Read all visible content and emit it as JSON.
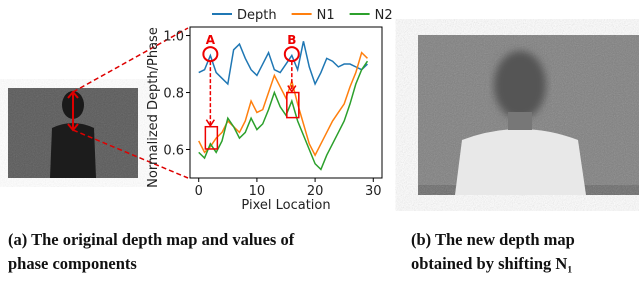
{
  "chart_data": {
    "type": "line",
    "x": [
      0,
      1,
      2,
      3,
      4,
      5,
      6,
      7,
      8,
      9,
      10,
      11,
      12,
      13,
      14,
      15,
      16,
      17,
      18,
      19,
      20,
      21,
      22,
      23,
      24,
      25,
      26,
      27,
      28,
      29
    ],
    "series": [
      {
        "name": "Depth",
        "color": "#1f77b4",
        "values": [
          0.87,
          0.88,
          0.93,
          0.87,
          0.85,
          0.83,
          0.95,
          0.97,
          0.92,
          0.88,
          0.86,
          0.9,
          0.94,
          0.88,
          0.87,
          0.9,
          0.93,
          0.88,
          0.98,
          0.89,
          0.83,
          0.87,
          0.92,
          0.91,
          0.89,
          0.9,
          0.9,
          0.89,
          0.88,
          0.9
        ]
      },
      {
        "name": "N1",
        "color": "#ff7f0e",
        "values": [
          0.63,
          0.59,
          0.61,
          0.64,
          0.66,
          0.7,
          0.68,
          0.66,
          0.7,
          0.77,
          0.73,
          0.74,
          0.8,
          0.86,
          0.82,
          0.78,
          0.84,
          0.76,
          0.69,
          0.62,
          0.58,
          0.62,
          0.66,
          0.7,
          0.73,
          0.76,
          0.82,
          0.87,
          0.94,
          0.92
        ]
      },
      {
        "name": "N2",
        "color": "#2ca02c",
        "values": [
          0.59,
          0.57,
          0.62,
          0.59,
          0.63,
          0.71,
          0.68,
          0.64,
          0.66,
          0.71,
          0.67,
          0.69,
          0.74,
          0.8,
          0.75,
          0.72,
          0.77,
          0.7,
          0.65,
          0.6,
          0.55,
          0.53,
          0.58,
          0.62,
          0.66,
          0.7,
          0.76,
          0.83,
          0.88,
          0.91
        ]
      }
    ],
    "x_label": "Pixel Location",
    "y_label": "Normalized Depth/Phase",
    "xlim": [
      -1.5,
      31.5
    ],
    "ylim": [
      0.5,
      1.03
    ],
    "xticks": [
      0,
      10,
      20,
      30
    ],
    "yticks": [
      0.6,
      0.8,
      {
        "value": 1,
        "label": "1.0"
      }
    ],
    "annotations": [
      "A",
      "B"
    ],
    "legend": "top"
  },
  "captions": {
    "a": [
      "(a) The original depth map and values of",
      "phase components"
    ],
    "b": [
      "(b) The new depth map",
      "obtained by shifting N₁"
    ]
  }
}
